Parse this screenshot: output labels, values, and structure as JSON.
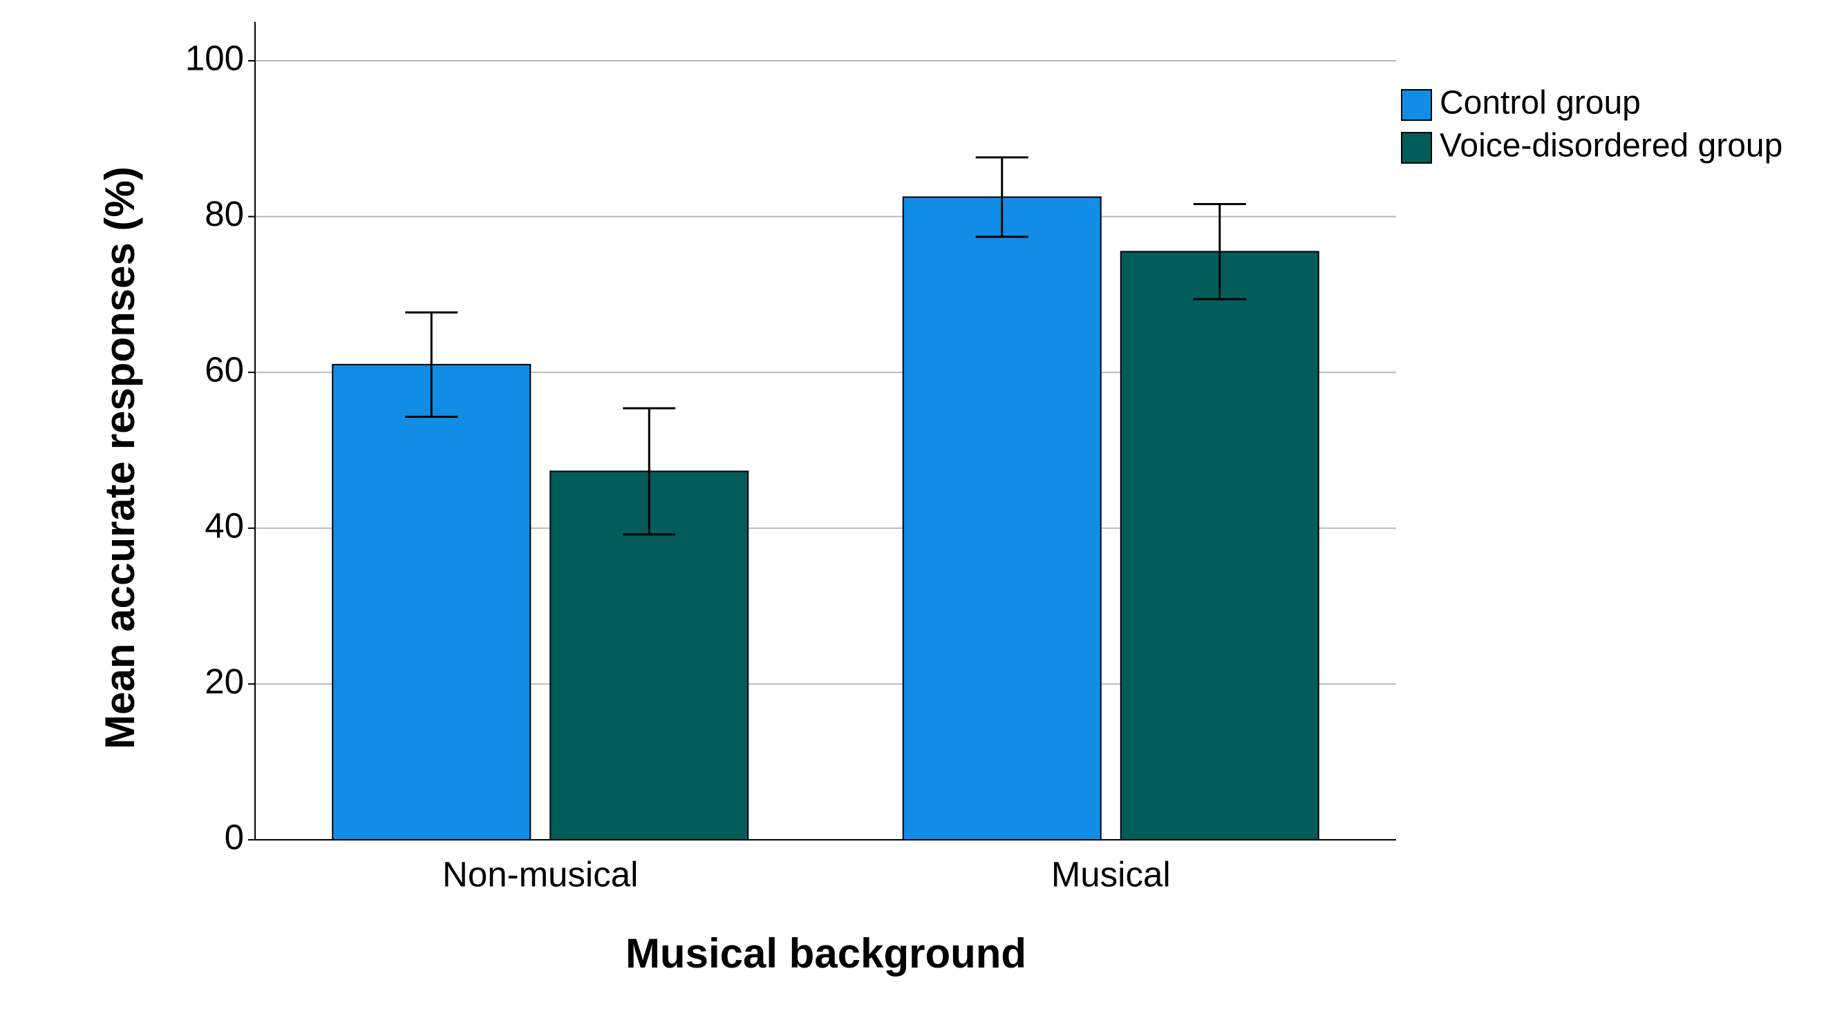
{
  "chart_data": {
    "type": "bar",
    "x_label": "Musical background",
    "y_label": "Mean accurate responses (%)",
    "categories": [
      "Non-musical",
      "Musical"
    ],
    "series": [
      {
        "name": "Control group",
        "color": "#118de6",
        "values": [
          61,
          82.5
        ],
        "error": [
          6.7,
          5.1
        ]
      },
      {
        "name": "Voice-disordered group",
        "color": "#025c5a",
        "values": [
          47.3,
          75.5
        ],
        "error": [
          8.1,
          6.1
        ]
      }
    ],
    "ylim": [
      0,
      105
    ],
    "yticks": [
      0,
      20,
      40,
      60,
      80,
      100
    ],
    "grid": true,
    "legend": "upper right"
  }
}
